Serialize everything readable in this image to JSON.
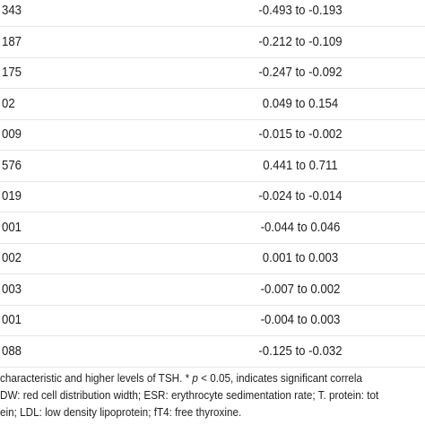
{
  "table": {
    "rows": [
      [
        "343",
        "-0.493 to -0.193"
      ],
      [
        "187",
        "-0.212 to -0.109"
      ],
      [
        "175",
        "-0.247 to -0.092"
      ],
      [
        "02",
        "0.049 to 0.154"
      ],
      [
        "009",
        "-0.015 to -0.002"
      ],
      [
        "576",
        "0.441 to 0.711"
      ],
      [
        "019",
        "-0.024 to -0.014"
      ],
      [
        "001",
        "-0.044 to 0.046"
      ],
      [
        "002",
        "0.001 to 0.003"
      ],
      [
        "003",
        "-0.007 to 0.002"
      ],
      [
        "001",
        "-0.004 to 0.003"
      ],
      [
        "088",
        "-0.125 to -0.032"
      ]
    ]
  },
  "footnote": {
    "lines": [
      [
        "characteristic and higher levels of TSH. * ",
        "p",
        " < 0.05, indicates significant correla"
      ],
      [
        "DW: red cell distribution width; ESR: erythrocyte sedimentation rate; T. protein: tot"
      ],
      [
        "ein; LDL: low density lipoprotein; fT4: free thyroxine."
      ]
    ]
  }
}
